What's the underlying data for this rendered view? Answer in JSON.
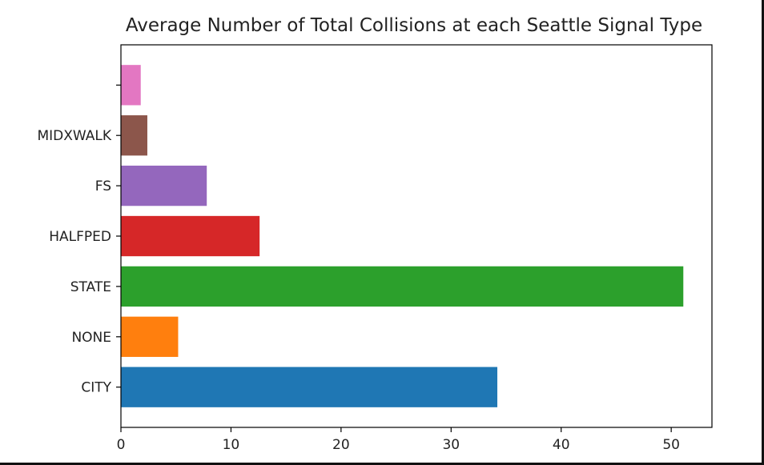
{
  "chart_data": {
    "type": "bar",
    "orientation": "horizontal",
    "title": "Average Number of Total Collisions at each Seattle Signal Type",
    "xlabel": "",
    "ylabel": "",
    "categories": [
      "CITY",
      "NONE",
      "STATE",
      "HALFPED",
      "FS",
      "MIDXWALK",
      ""
    ],
    "values": [
      34.2,
      5.2,
      51.1,
      12.6,
      7.8,
      2.4,
      1.8
    ],
    "colors": [
      "#1f77b4",
      "#ff7f0e",
      "#2ca02c",
      "#d62728",
      "#9467bd",
      "#8c564b",
      "#e377c2"
    ],
    "xlim": [
      0,
      53.7
    ],
    "x_ticks": [
      0,
      10,
      20,
      30,
      40,
      50
    ],
    "grid": false,
    "legend": "none"
  }
}
